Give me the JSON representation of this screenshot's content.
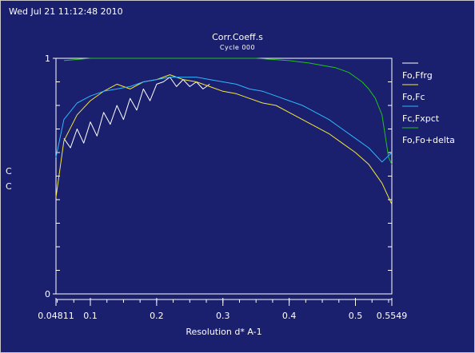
{
  "timestamp": "Wed Jul 21 11:12:48 2010",
  "chart_data": {
    "type": "line",
    "title": "Corr.Coeff.s",
    "subtitle": "Cycle 000",
    "ylabel_lines": [
      "C",
      "C"
    ],
    "xlabel": "Resolution d* A-1",
    "xlim": [
      0.04811,
      0.5549
    ],
    "ylim": [
      0,
      1
    ],
    "x_ticks": [
      {
        "value": 0.04811,
        "label": "0.04811"
      },
      {
        "value": 0.1,
        "label": "0.1"
      },
      {
        "value": 0.2,
        "label": "0.2"
      },
      {
        "value": 0.3,
        "label": "0.3"
      },
      {
        "value": 0.4,
        "label": "0.4"
      },
      {
        "value": 0.5,
        "label": "0.5"
      },
      {
        "value": 0.5549,
        "label": "0.5549"
      }
    ],
    "y_ticks": [
      {
        "value": 1,
        "label": "1"
      },
      {
        "value": 0,
        "label": "0"
      }
    ],
    "legend_position": "right",
    "series": [
      {
        "name": "Fo,Ffrg",
        "color": "#ffffff",
        "x": [
          0.06,
          0.07,
          0.08,
          0.09,
          0.1,
          0.11,
          0.12,
          0.13,
          0.14,
          0.15,
          0.16,
          0.17,
          0.18,
          0.19,
          0.2,
          0.21,
          0.22,
          0.23,
          0.24,
          0.25,
          0.26,
          0.27,
          0.28
        ],
        "y": [
          0.66,
          0.62,
          0.7,
          0.64,
          0.73,
          0.67,
          0.77,
          0.72,
          0.8,
          0.74,
          0.83,
          0.78,
          0.87,
          0.82,
          0.89,
          0.9,
          0.92,
          0.88,
          0.91,
          0.88,
          0.9,
          0.87,
          0.89
        ]
      },
      {
        "name": "Fo,Fc",
        "color": "#f5e83a",
        "x": [
          0.04811,
          0.06,
          0.08,
          0.1,
          0.12,
          0.14,
          0.16,
          0.18,
          0.2,
          0.22,
          0.24,
          0.26,
          0.28,
          0.3,
          0.32,
          0.34,
          0.36,
          0.38,
          0.4,
          0.42,
          0.44,
          0.46,
          0.48,
          0.5,
          0.52,
          0.54,
          0.5549
        ],
        "y": [
          0.41,
          0.65,
          0.76,
          0.82,
          0.86,
          0.89,
          0.87,
          0.9,
          0.91,
          0.93,
          0.91,
          0.9,
          0.88,
          0.86,
          0.85,
          0.83,
          0.81,
          0.8,
          0.77,
          0.74,
          0.71,
          0.68,
          0.64,
          0.6,
          0.55,
          0.47,
          0.38
        ]
      },
      {
        "name": "Fc,Fxpct",
        "color": "#2fb8ff",
        "x": [
          0.04811,
          0.06,
          0.08,
          0.1,
          0.12,
          0.14,
          0.16,
          0.18,
          0.2,
          0.22,
          0.24,
          0.26,
          0.28,
          0.3,
          0.32,
          0.34,
          0.36,
          0.38,
          0.4,
          0.42,
          0.44,
          0.46,
          0.48,
          0.5,
          0.52,
          0.54,
          0.5549
        ],
        "y": [
          0.58,
          0.74,
          0.81,
          0.84,
          0.86,
          0.87,
          0.88,
          0.9,
          0.91,
          0.92,
          0.92,
          0.92,
          0.91,
          0.9,
          0.89,
          0.87,
          0.86,
          0.84,
          0.82,
          0.8,
          0.77,
          0.74,
          0.7,
          0.66,
          0.62,
          0.56,
          0.6
        ]
      },
      {
        "name": "Fo,Fo+delta",
        "color": "#22c21c",
        "x": [
          0.06,
          0.1,
          0.15,
          0.2,
          0.25,
          0.3,
          0.35,
          0.4,
          0.43,
          0.45,
          0.47,
          0.49,
          0.5,
          0.51,
          0.52,
          0.53,
          0.54,
          0.545,
          0.55,
          0.5549
        ],
        "y": [
          0.99,
          1.0,
          1.0,
          1.0,
          1.0,
          1.0,
          1.0,
          0.99,
          0.98,
          0.97,
          0.96,
          0.94,
          0.92,
          0.9,
          0.87,
          0.83,
          0.76,
          0.67,
          0.58,
          0.55
        ]
      }
    ]
  }
}
